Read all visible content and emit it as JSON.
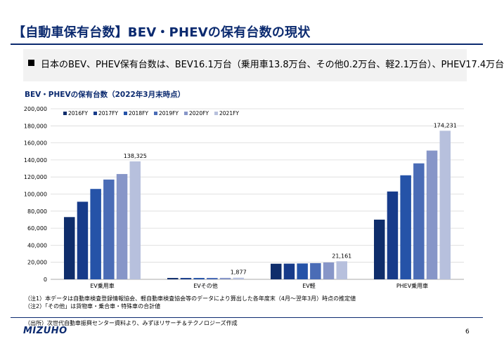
{
  "header": {
    "title": "【自動車保有台数】BEV・PHEVの保有台数の現状"
  },
  "summary": {
    "text": "日本のBEV、PHEV保有台数は、BEV16.1万台（乗用車13.8万台、その他0.2万台、軽2.1万台）、PHEV17.4万台"
  },
  "notes": [
    "（注1）本データは自動車検査登録情報協会、軽自動車検査協会等のデータにより算出した各年度末（4月～翌年3月）時点の推定値",
    "（注2）「その他」は貨物車・乗合車・特殊車の合計値"
  ],
  "footer": {
    "source": "（出所）次世代自動車振興センター資料より、みずほリサーチ＆テクノロジーズ作成",
    "logo": "MIZUHO",
    "page_number": "6"
  },
  "chart_data": {
    "type": "bar",
    "title": "BEV・PHEVの保有台数（2022年3月末時点）",
    "categories": [
      "EV乗用車",
      "EVその他",
      "EV軽",
      "PHEV乗用車"
    ],
    "series": [
      {
        "name": "2016FY",
        "color": "#0f2d6b",
        "values": [
          73000,
          1600,
          18300,
          70000
        ]
      },
      {
        "name": "2017FY",
        "color": "#173b8a",
        "values": [
          91000,
          1600,
          18400,
          103000
        ]
      },
      {
        "name": "2018FY",
        "color": "#2553a8",
        "values": [
          106000,
          1600,
          18600,
          122000
        ]
      },
      {
        "name": "2019FY",
        "color": "#4a6cb6",
        "values": [
          117000,
          1650,
          19000,
          136000
        ]
      },
      {
        "name": "2020FY",
        "color": "#8796c8",
        "values": [
          123500,
          1700,
          19800,
          151000
        ]
      },
      {
        "name": "2021FY",
        "color": "#b7c0dd",
        "values": [
          138325,
          1877,
          21161,
          174231
        ]
      }
    ],
    "data_labels": [
      {
        "category_index": 0,
        "series_index": 5,
        "text": "138,325"
      },
      {
        "category_index": 1,
        "series_index": 5,
        "text": "1,877"
      },
      {
        "category_index": 2,
        "series_index": 5,
        "text": "21,161"
      },
      {
        "category_index": 3,
        "series_index": 5,
        "text": "174,231"
      }
    ],
    "y_ticks": [
      "0",
      "20,000",
      "40,000",
      "60,000",
      "80,000",
      "100,000",
      "120,000",
      "140,000",
      "160,000",
      "180,000",
      "200,000"
    ],
    "ylim": [
      0,
      200000
    ],
    "grid": true,
    "legend_position": "top-left"
  }
}
